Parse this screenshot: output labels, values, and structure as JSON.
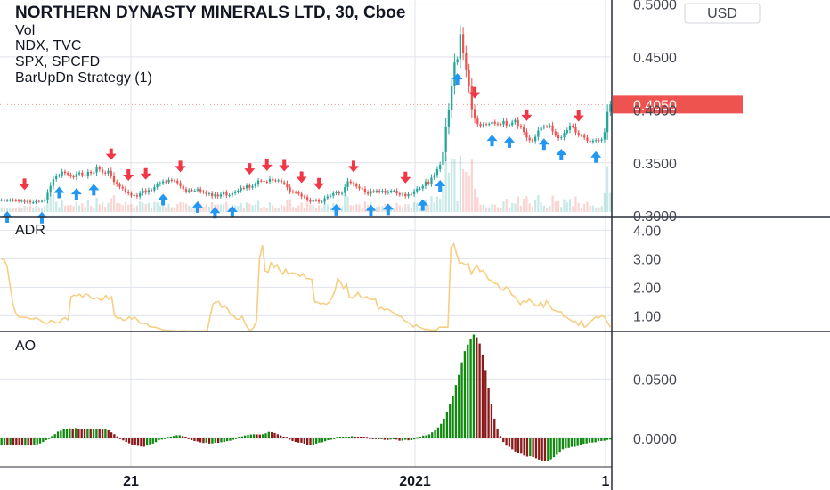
{
  "legend": {
    "symbol_title": "NORTHERN DYNASTY MINERALS LTD, 30, Cboe",
    "lines": [
      "Vol",
      "NDX, TVC",
      "SPX, SPCFD",
      "BarUpDn Strategy (1)"
    ]
  },
  "currency_button": "USD",
  "last_price_label": "0.4050",
  "colors": {
    "up": "#26a69a",
    "down": "#ef5350",
    "buy_arrow": "#2196f3",
    "sell_arrow": "#f23645",
    "exit_marker": "#e91ee3",
    "adr_line": "#f7cf82",
    "ao_up": "#0f8a0f",
    "ao_down": "#8b1a1a",
    "last_price_bg": "#ef5350",
    "grid": "#e0e3eb",
    "separator": "#2a2e39"
  },
  "price_axis": {
    "ticks": [
      "0.3000",
      "0.3500",
      "0.4000",
      "0.4500",
      "0.5000"
    ],
    "tick_values": [
      0.3,
      0.35,
      0.4,
      0.45,
      0.5
    ],
    "range": [
      0.2985,
      0.5037
    ],
    "last_price": 0.405
  },
  "time_axis": {
    "labels": [
      "21",
      "2021",
      "1"
    ]
  },
  "adr_pane": {
    "label": "ADR",
    "ticks": [
      "1.00",
      "2.00",
      "3.00",
      "4.00"
    ],
    "tick_values": [
      1,
      2,
      3,
      4
    ],
    "range": [
      0.45,
      4.45
    ]
  },
  "ao_pane": {
    "label": "AO",
    "ticks": [
      "0.0000",
      "0.0500"
    ],
    "tick_values": [
      0,
      0.05
    ],
    "range": [
      -0.024,
      0.09
    ]
  },
  "chart_data": [
    {
      "type": "candlestick",
      "title": "NORTHERN DYNASTY MINERALS LTD, 30, Cboe",
      "ylim": [
        0.2985,
        0.5037
      ],
      "close": [
        0.315,
        0.3145,
        0.3147,
        0.3151,
        0.3147,
        0.3145,
        0.3139,
        0.3142,
        0.313,
        0.3139,
        0.3126,
        0.3127,
        0.3139,
        0.3138,
        0.314,
        0.3152,
        0.3217,
        0.3284,
        0.3346,
        0.3376,
        0.3382,
        0.3417,
        0.3403,
        0.3389,
        0.3373,
        0.3362,
        0.3394,
        0.3407,
        0.3383,
        0.3376,
        0.3414,
        0.3402,
        0.3408,
        0.3456,
        0.3437,
        0.3408,
        0.34,
        0.3425,
        0.3379,
        0.332,
        0.3296,
        0.3273,
        0.3258,
        0.3229,
        0.3212,
        0.3192,
        0.3195,
        0.3182,
        0.3213,
        0.3239,
        0.3219,
        0.3244,
        0.3241,
        0.327,
        0.3297,
        0.3309,
        0.3325,
        0.3318,
        0.3339,
        0.3333,
        0.333,
        0.331,
        0.3281,
        0.3252,
        0.323,
        0.3243,
        0.3237,
        0.3238,
        0.3252,
        0.323,
        0.3223,
        0.3204,
        0.3213,
        0.3185,
        0.3201,
        0.3183,
        0.3201,
        0.3221,
        0.3191,
        0.3196,
        0.3213,
        0.3226,
        0.3238,
        0.3263,
        0.326,
        0.3287,
        0.3266,
        0.328,
        0.3298,
        0.3332,
        0.333,
        0.3322,
        0.3321,
        0.3348,
        0.3334,
        0.3333,
        0.3335,
        0.3317,
        0.3306,
        0.3268,
        0.323,
        0.3223,
        0.3221,
        0.3208,
        0.3182,
        0.3177,
        0.3151,
        0.3133,
        0.3148,
        0.3147,
        0.3132,
        0.3133,
        0.3166,
        0.3183,
        0.3189,
        0.3213,
        0.3222,
        0.3209,
        0.3216,
        0.3271,
        0.3325,
        0.331,
        0.3296,
        0.3277,
        0.3259,
        0.3254,
        0.3223,
        0.3207,
        0.3234,
        0.3229,
        0.3236,
        0.3226,
        0.3237,
        0.3217,
        0.3227,
        0.3237,
        0.3237,
        0.3212,
        0.3199,
        0.3206,
        0.3186,
        0.3205,
        0.3203,
        0.3231,
        0.3256,
        0.3257,
        0.3281,
        0.3322,
        0.3305,
        0.336,
        0.3386,
        0.3439,
        0.3482,
        0.36,
        0.3836,
        0.3997,
        0.4224,
        0.4447,
        0.4479,
        0.4715,
        0.4539,
        0.4374,
        0.4225,
        0.4006,
        0.3917,
        0.3867,
        0.3849,
        0.3865,
        0.3864,
        0.3867,
        0.3887,
        0.387,
        0.3864,
        0.3863,
        0.3895,
        0.3852,
        0.3857,
        0.3882,
        0.3904,
        0.385,
        0.3837,
        0.3793,
        0.3738,
        0.3715,
        0.3705,
        0.3745,
        0.3805,
        0.3832,
        0.3845,
        0.3842,
        0.3854,
        0.3796,
        0.3766,
        0.3733,
        0.374,
        0.3782,
        0.3809,
        0.3852,
        0.3841,
        0.3787,
        0.3762,
        0.3758,
        0.3738,
        0.3708,
        0.3697,
        0.371,
        0.3715,
        0.371,
        0.3721,
        0.379,
        0.398,
        0.405
      ]
    },
    {
      "type": "line",
      "title": "ADR",
      "ylim": [
        0.45,
        4.45
      ],
      "values": [
        2.99,
        2.96,
        2.71,
        2.04,
        1.37,
        1.08,
        0.96,
        0.95,
        0.94,
        0.93,
        0.89,
        0.89,
        0.93,
        0.87,
        0.8,
        0.73,
        0.73,
        0.84,
        0.79,
        0.74,
        0.77,
        0.88,
        0.93,
        0.86,
        1.67,
        1.72,
        1.7,
        1.76,
        1.64,
        1.77,
        1.73,
        1.61,
        1.59,
        1.64,
        1.56,
        1.57,
        1.71,
        1.58,
        1.67,
        1.01,
        0.91,
        0.93,
        0.84,
        0.86,
        0.96,
        0.88,
        0.95,
        0.84,
        0.73,
        0.73,
        0.73,
        0.63,
        0.6,
        0.6,
        0.57,
        0.53,
        0.5,
        0.49,
        0.48,
        0.48,
        0.47,
        0.47,
        0.47,
        0.48,
        0.47,
        0.47,
        0.47,
        0.47,
        0.47,
        0.47,
        0.47,
        0.48,
        1.0,
        1.41,
        1.49,
        1.49,
        1.29,
        1.35,
        1.24,
        1.05,
        1.0,
        0.88,
        0.88,
        0.98,
        0.74,
        0.56,
        0.47,
        0.59,
        0.81,
        3.0,
        3.48,
        2.57,
        2.53,
        2.86,
        2.69,
        2.79,
        2.59,
        2.46,
        2.63,
        2.45,
        2.5,
        2.5,
        2.46,
        2.38,
        2.47,
        2.31,
        2.3,
        2.28,
        1.49,
        1.47,
        1.42,
        1.44,
        1.4,
        1.47,
        1.63,
        1.88,
        2.31,
        2.16,
        1.96,
        2.1,
        1.65,
        1.61,
        1.7,
        1.82,
        1.64,
        1.62,
        1.67,
        1.58,
        1.57,
        1.58,
        1.23,
        1.29,
        1.2,
        1.24,
        1.19,
        1.11,
        1.05,
        0.99,
        0.96,
        0.83,
        0.78,
        0.71,
        0.61,
        0.68,
        0.61,
        0.57,
        0.52,
        0.53,
        0.5,
        0.5,
        0.5,
        0.6,
        0.6,
        0.6,
        0.6,
        3.4,
        3.52,
        3.15,
        2.84,
        2.86,
        2.78,
        2.83,
        2.46,
        2.63,
        2.77,
        2.55,
        2.59,
        2.46,
        2.27,
        2.24,
        2.14,
        2.12,
        1.95,
        1.88,
        2.01,
        1.95,
        1.73,
        1.67,
        1.53,
        1.39,
        1.52,
        1.47,
        1.58,
        1.48,
        1.38,
        1.33,
        1.48,
        1.3,
        1.52,
        1.39,
        1.21,
        1.18,
        1.14,
        1.14,
        0.97,
        0.94,
        0.86,
        0.8,
        0.8,
        0.66,
        0.83,
        0.6,
        0.66,
        0.79,
        0.87,
        0.96,
        0.93,
        1.0,
        0.96,
        0.77,
        0.6
      ]
    },
    {
      "type": "bar",
      "title": "AO",
      "ylim": [
        -0.024,
        0.09
      ],
      "values": [
        -0.0054,
        -0.0053,
        -0.0056,
        -0.0053,
        -0.0055,
        -0.0056,
        -0.0058,
        -0.006,
        -0.0056,
        -0.0059,
        -0.0061,
        -0.0052,
        -0.005,
        -0.0043,
        -0.0031,
        -0.0015,
        0.0,
        0.002,
        0.0036,
        0.0057,
        0.0064,
        0.0078,
        0.0082,
        0.0085,
        0.0083,
        0.0087,
        0.0082,
        0.008,
        0.0079,
        0.0081,
        0.0075,
        0.0081,
        0.0082,
        0.0081,
        0.0074,
        0.0078,
        0.0068,
        0.0051,
        0.0036,
        0.0018,
        0.0,
        -0.0017,
        -0.003,
        -0.0042,
        -0.0055,
        -0.006,
        -0.0063,
        -0.0069,
        -0.0071,
        -0.0061,
        -0.0051,
        -0.0044,
        -0.0032,
        -0.0016,
        -0.001,
        -0.0002,
        0.0005,
        0.0013,
        0.0021,
        0.0027,
        0.0027,
        0.002,
        0.0008,
        -0.0003,
        -0.0015,
        -0.0023,
        -0.0026,
        -0.0034,
        -0.0039,
        -0.0037,
        -0.0044,
        -0.0043,
        -0.0037,
        -0.0038,
        -0.0033,
        -0.0031,
        -0.0024,
        -0.002,
        -0.0011,
        -0.0005,
        0.001,
        0.0017,
        0.0025,
        0.0029,
        0.0033,
        0.0035,
        0.0034,
        0.0033,
        0.0035,
        0.0043,
        0.0055,
        0.0053,
        0.0046,
        0.0035,
        0.0026,
        0.0015,
        0.0006,
        -0.0011,
        -0.0022,
        -0.003,
        -0.0036,
        -0.0037,
        -0.0045,
        -0.0055,
        -0.0057,
        -0.0052,
        -0.0044,
        -0.0036,
        -0.0033,
        -0.0024,
        -0.0015,
        -0.0011,
        -0.0003,
        0.0006,
        0.0011,
        0.0011,
        0.0012,
        0.0015,
        0.0019,
        0.0015,
        0.0011,
        0.0008,
        0.0007,
        0.0005,
        0.0001,
        0.0,
        -0.0005,
        -0.0007,
        -0.0007,
        -0.0012,
        -0.0014,
        -0.001,
        -0.0007,
        -0.001,
        -0.002,
        -0.0019,
        -0.0012,
        -0.0016,
        -0.0015,
        -0.0009,
        0.0003,
        0.0012,
        0.0024,
        0.0026,
        0.0034,
        0.0051,
        0.0068,
        0.0092,
        0.0122,
        0.0166,
        0.0221,
        0.0289,
        0.036,
        0.0449,
        0.0535,
        0.064,
        0.0734,
        0.079,
        0.0838,
        0.0874,
        0.0851,
        0.0798,
        0.0706,
        0.0575,
        0.0421,
        0.0292,
        0.0166,
        0.0083,
        0.002,
        -0.0031,
        -0.0062,
        -0.0073,
        -0.0093,
        -0.0111,
        -0.0121,
        -0.013,
        -0.0145,
        -0.0154,
        -0.0151,
        -0.0157,
        -0.0168,
        -0.0179,
        -0.0187,
        -0.0191,
        -0.0189,
        -0.0177,
        -0.0159,
        -0.0139,
        -0.0114,
        -0.0092,
        -0.0084,
        -0.0081,
        -0.0072,
        -0.0072,
        -0.0065,
        -0.0053,
        -0.0046,
        -0.0043,
        -0.0036,
        -0.0035,
        -0.0033,
        -0.0022,
        -0.0022,
        -0.002,
        -0.0013,
        -0.001
      ]
    }
  ]
}
